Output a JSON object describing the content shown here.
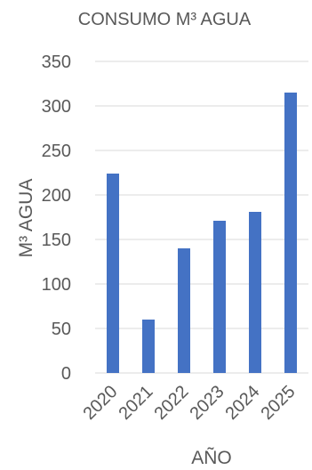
{
  "chart_data": {
    "type": "bar",
    "title": "CONSUMO M³ AGUA",
    "xlabel": "AÑO",
    "ylabel": "M³ AGUA",
    "categories": [
      "2020",
      "2021",
      "2022",
      "2023",
      "2024",
      "2025"
    ],
    "values": [
      224,
      60,
      140,
      171,
      181,
      315
    ],
    "ylim": [
      0,
      350
    ],
    "yticks": [
      "0",
      "50",
      "100",
      "150",
      "200",
      "250",
      "300",
      "350"
    ],
    "grid": true,
    "legend": "none",
    "colors": {
      "bar": "#4472C4",
      "grid": "#D9D9D9",
      "text": "#595959"
    }
  }
}
